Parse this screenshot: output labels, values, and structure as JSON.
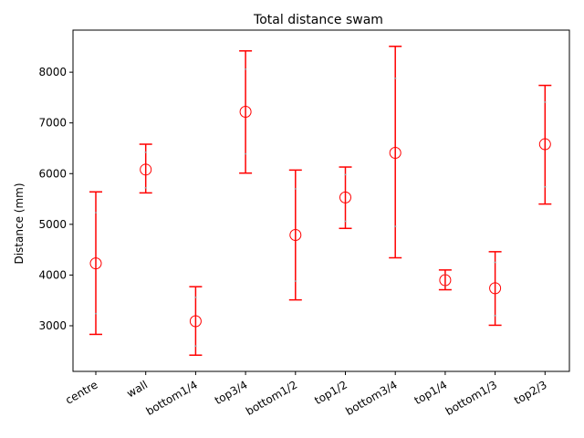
{
  "chart_data": {
    "type": "scatter",
    "title": "Total distance swam",
    "xlabel": "",
    "ylabel": "Distance (mm)",
    "ylim": [
      2100,
      8830
    ],
    "yticks": [
      3000,
      4000,
      5000,
      6000,
      7000,
      8000
    ],
    "categories": [
      "centre",
      "wall",
      "bottom1/4",
      "top3/4",
      "bottom1/2",
      "top1/2",
      "bottom3/4",
      "top1/4",
      "bottom1/3",
      "top2/3"
    ],
    "series": [
      {
        "marker": "open-circle",
        "color": "#ff0000",
        "values": [
          4230,
          6080,
          3090,
          7220,
          4790,
          5530,
          6410,
          3900,
          3740,
          6580
        ],
        "err_low": [
          2830,
          5620,
          2420,
          6010,
          3510,
          4920,
          4340,
          3710,
          3010,
          5400
        ],
        "err_high": [
          5640,
          6580,
          3770,
          8420,
          6070,
          6130,
          8510,
          4100,
          4460,
          7740
        ],
        "inner_low": [
          3240,
          5720,
          2600,
          6390,
          3880,
          5060,
          4960,
          3790,
          3200,
          5740
        ],
        "inner_high": [
          5230,
          6420,
          3560,
          8060,
          5700,
          5980,
          7880,
          4010,
          4250,
          7410
        ]
      }
    ]
  }
}
